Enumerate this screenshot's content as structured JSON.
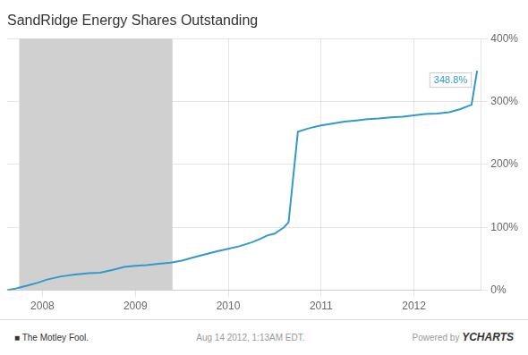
{
  "chart_data": {
    "type": "line",
    "title": "SandRidge Energy Shares Outstanding",
    "x": [
      2007.62,
      2007.72,
      2007.85,
      2007.95,
      2008.05,
      2008.2,
      2008.35,
      2008.5,
      2008.62,
      2008.75,
      2008.88,
      2009.0,
      2009.12,
      2009.25,
      2009.38,
      2009.5,
      2009.62,
      2009.75,
      2009.88,
      2010.0,
      2010.12,
      2010.25,
      2010.35,
      2010.42,
      2010.5,
      2010.55,
      2010.6,
      2010.65,
      2010.75,
      2010.88,
      2011.0,
      2011.12,
      2011.25,
      2011.38,
      2011.5,
      2011.62,
      2011.75,
      2011.88,
      2012.0,
      2012.12,
      2012.25,
      2012.38,
      2012.5,
      2012.62,
      2012.68
    ],
    "values": [
      0,
      3,
      8,
      12,
      17,
      22,
      25,
      27,
      28,
      32,
      37,
      39,
      40,
      42,
      44,
      47,
      52,
      57,
      62,
      66,
      70,
      76,
      82,
      87,
      90,
      95,
      100,
      108,
      252,
      258,
      262,
      265,
      268,
      270,
      272,
      273,
      275,
      276,
      278,
      280,
      281,
      283,
      288,
      295,
      349
    ],
    "color": "#3399cc",
    "xlim": [
      2007.62,
      2012.72
    ],
    "xticks": [
      2008,
      2009,
      2010,
      2011,
      2012
    ],
    "ylim": [
      0,
      400
    ],
    "yticks": [
      {
        "value": 0,
        "label": "0%"
      },
      {
        "value": 100,
        "label": "100%"
      },
      {
        "value": 200,
        "label": "200%"
      },
      {
        "value": 300,
        "label": "300%"
      },
      {
        "value": 400,
        "label": "400%"
      }
    ],
    "grid": true,
    "shaded": [
      {
        "from": 2007.75,
        "to": 2009.4,
        "color": "#d0d0d0"
      }
    ],
    "annotation": "348.8%",
    "footer": [
      "■ The Motley Fool.",
      "Aug 14 2012, 1:13AM EDT.",
      "Powered by",
      "YCHARTS"
    ]
  }
}
